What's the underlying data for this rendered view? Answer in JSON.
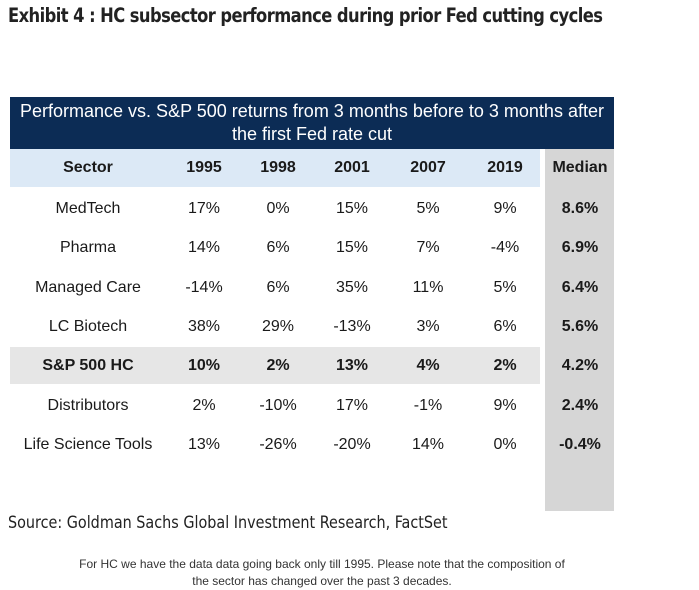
{
  "exhibit_title": "Exhibit 4 : HC subsector performance during prior Fed cutting cycles",
  "chart_data": {
    "type": "table",
    "title": "Performance vs. S&P 500 returns from 3 months before to 3 months after the first Fed rate cut",
    "columns": [
      "Sector",
      "1995",
      "1998",
      "2001",
      "2007",
      "2019",
      "Median"
    ],
    "rows": [
      {
        "sector": "MedTech",
        "values": [
          "17%",
          "0%",
          "15%",
          "5%",
          "9%"
        ],
        "median": "8.6%",
        "highlight": false
      },
      {
        "sector": "Pharma",
        "values": [
          "14%",
          "6%",
          "15%",
          "7%",
          "-4%"
        ],
        "median": "6.9%",
        "highlight": false
      },
      {
        "sector": "Managed Care",
        "values": [
          "-14%",
          "6%",
          "35%",
          "11%",
          "5%"
        ],
        "median": "6.4%",
        "highlight": false
      },
      {
        "sector": "LC Biotech",
        "values": [
          "38%",
          "29%",
          "-13%",
          "3%",
          "6%"
        ],
        "median": "5.6%",
        "highlight": false
      },
      {
        "sector": "S&P 500 HC",
        "values": [
          "10%",
          "2%",
          "13%",
          "4%",
          "2%"
        ],
        "median": "4.2%",
        "highlight": true
      },
      {
        "sector": "Distributors",
        "values": [
          "2%",
          "-10%",
          "17%",
          "-1%",
          "9%"
        ],
        "median": "2.4%",
        "highlight": false
      },
      {
        "sector": "Life Science Tools",
        "values": [
          "13%",
          "-26%",
          "-20%",
          "14%",
          "0%"
        ],
        "median": "-0.4%",
        "highlight": false
      }
    ],
    "footnote_line1": "For HC we have the data data going back only till 1995. Please note that the composition of",
    "footnote_line2": "the sector has changed over the past 3 decades.",
    "colors": {
      "banner": "#0c2c55",
      "header_band": "#dce9f6",
      "median_column": "#d6d6d6",
      "highlight_row": "#e6e6e6"
    }
  },
  "source": "Source: Goldman Sachs Global Investment Research, FactSet"
}
